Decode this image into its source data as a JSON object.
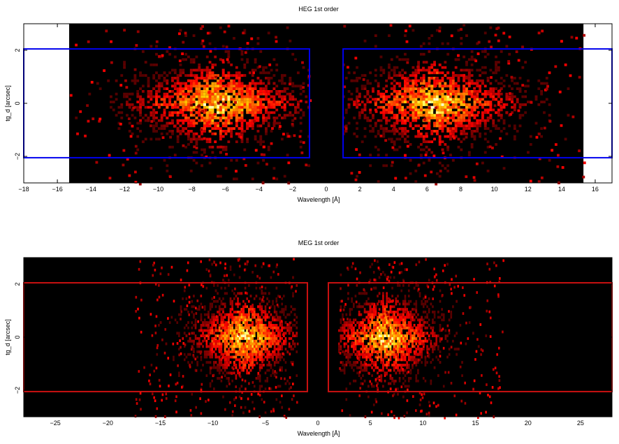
{
  "chart_data": [
    {
      "type": "heatmap",
      "title": "HEG 1st order",
      "xlabel": "Wavelength [Å]",
      "ylabel": "tg_d [arcsec]",
      "xlim": [
        -18,
        17
      ],
      "ylim": [
        -3,
        3
      ],
      "xticks": [
        -18,
        -16,
        -14,
        -12,
        -10,
        -8,
        -6,
        -4,
        -2,
        0,
        2,
        4,
        6,
        8,
        10,
        12,
        14,
        16
      ],
      "yticks": [
        -2,
        0,
        2
      ],
      "data_extent_x": [
        -15.3,
        15.3
      ],
      "colormap": "black-red-yellow-white",
      "background_color": "#000000",
      "region_color": "#0000ee",
      "regions": [
        {
          "x": [
            -18,
            -1.0
          ],
          "y": [
            -2.05,
            2.05
          ]
        },
        {
          "x": [
            1.0,
            17
          ],
          "y": [
            -2.05,
            2.05
          ]
        }
      ],
      "peaks": [
        {
          "x_range": [
            -13,
            -1.0
          ],
          "peak_x": -6.5
        },
        {
          "x_range": [
            1.0,
            13
          ],
          "peak_x": 6.5
        }
      ]
    },
    {
      "type": "heatmap",
      "title": "MEG 1st order",
      "xlabel": "Wavelength [Å]",
      "ylabel": "tg_d [arcsec]",
      "xlim": [
        -28,
        28
      ],
      "ylim": [
        -3,
        3
      ],
      "xticks": [
        -25,
        -20,
        -15,
        -10,
        -5,
        0,
        5,
        10,
        15,
        20,
        25
      ],
      "yticks": [
        -2,
        0,
        2
      ],
      "data_extent_x": [
        -28,
        28
      ],
      "colormap": "black-red-yellow-white",
      "background_color": "#000000",
      "region_color": "#cc1111",
      "regions": [
        {
          "x": [
            -28,
            -1.0
          ],
          "y": [
            -2.05,
            2.05
          ]
        },
        {
          "x": [
            1.0,
            28
          ],
          "y": [
            -2.05,
            2.05
          ]
        }
      ],
      "peaks": [
        {
          "x_range": [
            -14,
            -2.0
          ],
          "peak_x": -7.0
        },
        {
          "x_range": [
            2.0,
            14
          ],
          "peak_x": 6.5
        }
      ]
    }
  ]
}
